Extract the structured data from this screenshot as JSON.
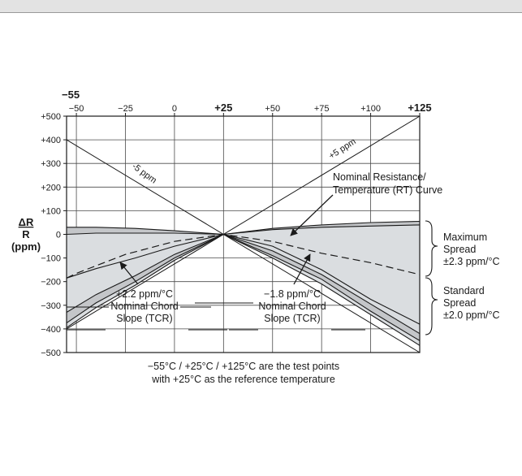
{
  "chart_data": {
    "type": "line",
    "xlabel_left_extra": "−55",
    "x_ticks": [
      "−50",
      "−25",
      "0",
      "+25",
      "+50",
      "+75",
      "+100",
      "+125"
    ],
    "x_tick_values": [
      -50,
      -25,
      0,
      25,
      50,
      75,
      100,
      125
    ],
    "x_bold_ticks": [
      "+25",
      "+125"
    ],
    "xlim": [
      -55,
      125
    ],
    "y_ticks": [
      "+500",
      "+400",
      "+300",
      "+200",
      "+100",
      "0",
      "−100",
      "−200",
      "−300",
      "−400",
      "−500"
    ],
    "y_tick_values": [
      500,
      400,
      300,
      200,
      100,
      0,
      -100,
      -200,
      -300,
      -400,
      -500
    ],
    "ylim": [
      -500,
      500
    ],
    "ylabel_top": "ΔR",
    "ylabel_mid": "R",
    "ylabel_unit": "(ppm)",
    "grid": true,
    "series": [
      {
        "name": "+5 ppm",
        "x": [
          -55,
          125
        ],
        "y": [
          -400,
          500
        ]
      },
      {
        "name": "-5 ppm",
        "x": [
          -55,
          125
        ],
        "y": [
          400,
          -500
        ]
      },
      {
        "name": "Nominal Resistance/ Temperature (RT) Curve",
        "style": "dashed",
        "x": [
          -55,
          -50,
          -25,
          0,
          25,
          50,
          75,
          100,
          125
        ],
        "y": [
          -185,
          -165,
          -85,
          -30,
          0,
          -30,
          -80,
          -120,
          -170
        ]
      },
      {
        "x": [
          -55,
          -40,
          -20,
          0,
          25,
          50,
          75,
          100,
          125
        ],
        "y": [
          30,
          30,
          25,
          15,
          0,
          25,
          40,
          50,
          55
        ]
      },
      {
        "x": [
          -55,
          -40,
          -20,
          0,
          25,
          50,
          75,
          100,
          125
        ],
        "y": [
          0,
          5,
          5,
          5,
          0,
          20,
          30,
          35,
          40
        ]
      },
      {
        "x": [
          -55,
          -40,
          -20,
          0,
          25,
          50,
          75,
          100,
          125
        ],
        "y": [
          -185,
          -145,
          -100,
          -50,
          0,
          -50,
          -150,
          -275,
          -380
        ]
      },
      {
        "x": [
          -55,
          -40,
          -20,
          0,
          25,
          50,
          75,
          100,
          125
        ],
        "y": [
          -330,
          -255,
          -175,
          -85,
          0,
          -70,
          -170,
          -295,
          -420
        ]
      },
      {
        "x": [
          -55,
          -40,
          -20,
          0,
          25,
          50,
          75,
          100,
          125
        ],
        "y": [
          -375,
          -290,
          -200,
          -100,
          0,
          -90,
          -190,
          -325,
          -450
        ]
      },
      {
        "x": [
          -55,
          -40,
          -20,
          0,
          25,
          50,
          75,
          100,
          125
        ],
        "y": [
          -395,
          -310,
          -215,
          -110,
          0,
          -100,
          -210,
          -340,
          -470
        ]
      }
    ],
    "annotations": {
      "plus5": "+5 ppm",
      "minus5": "-5 ppm",
      "rt_curve_1": "Nominal Resistance/",
      "rt_curve_2": "Temperature (RT) Curve",
      "tcr_pos_1": "+2.2 ppm/°C",
      "tcr_pos_2": "Nominal Chord",
      "tcr_pos_3": "Slope (TCR)",
      "tcr_neg_1": "−1.8 ppm/°C",
      "tcr_neg_2": "Nominal Chord",
      "tcr_neg_3": "Slope (TCR)",
      "max_spread_1": "Maximum",
      "max_spread_2": "Spread",
      "max_spread_3": "±2.3 ppm/°C",
      "std_spread_1": "Standard",
      "std_spread_2": "Spread",
      "std_spread_3": "±2.0 ppm/°C",
      "footnote_1": "−55°C / +25°C / +125°C are the test points",
      "footnote_2": "with +25°C as the reference temperature"
    },
    "colors": {
      "band": "#dadde0",
      "ring": "#c4c6c9",
      "line": "#1a1a1a"
    }
  }
}
